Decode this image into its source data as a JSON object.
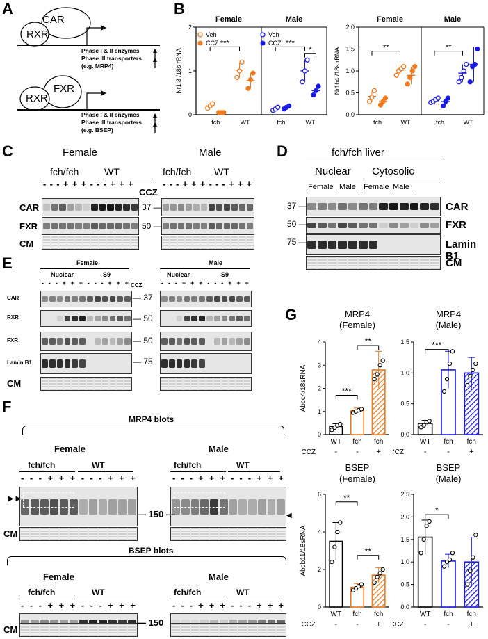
{
  "panels": {
    "A": {
      "label": "A",
      "top": {
        "receptor": "CAR",
        "partner": "RXR",
        "line1": "Phase I & II enzymes",
        "line2": "Phase III transporters",
        "line3": "(e.g. MRP4)"
      },
      "bottom": {
        "receptor": "FXR",
        "partner": "RXR",
        "line1": "Phase I & II enzymes",
        "line2": "Phase III transporters",
        "line3": "(e.g. BSEP)"
      }
    },
    "B": {
      "label": "B"
    },
    "C": {
      "label": "C",
      "female_title": "Female",
      "male_title": "Male",
      "group1": "fch/fch",
      "group2": "WT",
      "ccz_label": "CCZ",
      "lanes": [
        "-",
        "-",
        "-",
        "+",
        "+",
        "+",
        "-",
        "-",
        "-",
        "+",
        "+",
        "+"
      ],
      "row_labels": [
        "CAR",
        "FXR",
        "CM"
      ],
      "markers": [
        "37",
        "50"
      ]
    },
    "D": {
      "label": "D",
      "title": "fch/fch liver",
      "fraction1": "Nuclear",
      "fraction2": "Cytosolic",
      "sexes": [
        "Female",
        "Male",
        "Female",
        "Male"
      ],
      "row_labels": [
        "CAR",
        "FXR",
        "Lamin B1",
        "CM"
      ],
      "markers": [
        "37",
        "50",
        "75"
      ]
    },
    "E": {
      "label": "E",
      "female_title": "Female",
      "male_title": "Male",
      "fraction1": "Nuclear",
      "fraction2": "S9",
      "ccz_label": "CCZ",
      "lanes": [
        "-",
        "-",
        "-",
        "+",
        "+",
        "+",
        "-",
        "-",
        "-",
        "+",
        "+",
        "+"
      ],
      "row_labels": [
        "CAR",
        "RXR",
        "FXR",
        "Lamin B1",
        "CM"
      ],
      "markers": [
        "37",
        "50",
        "50",
        "75"
      ]
    },
    "F": {
      "label": "F",
      "mrp4_title": "MRP4 blots",
      "bsep_title": "BSEP blots",
      "female_title": "Female",
      "male_title": "Male",
      "group1": "fch/fch",
      "group2": "WT",
      "lanes": [
        "-",
        "-",
        "-",
        "+",
        "+",
        "+",
        "-",
        "-",
        "-",
        "+",
        "+",
        "+"
      ],
      "marker": "150",
      "cm": "CM"
    },
    "G": {
      "label": "G"
    }
  },
  "chart_data": [
    {
      "type": "scatter",
      "panel": "B-left",
      "ylabel": "Nr1i3 /18s rRNA",
      "ylim": [
        0,
        2
      ],
      "yticks": [
        "0",
        "1",
        "2"
      ],
      "groups": [
        "Female",
        "Male"
      ],
      "categories": [
        "fch",
        "WT",
        "fch",
        "WT"
      ],
      "legend": {
        "female": [
          "Veh",
          "CCZ"
        ],
        "male": [
          "Veh",
          "CCZ"
        ]
      },
      "series": [
        {
          "name": "Veh",
          "sex": "Female",
          "points": {
            "fch": [
              0.15,
              0.2,
              0.25
            ],
            "WT": [
              0.85,
              1.0,
              1.2
            ]
          },
          "mean": {
            "fch": 0.2,
            "WT": 1.02
          },
          "sd": {
            "fch": 0.05,
            "WT": 0.17
          }
        },
        {
          "name": "CCZ",
          "sex": "Female",
          "points": {
            "fch": [
              0.05,
              0.05,
              0.05
            ],
            "WT": [
              0.6,
              0.8,
              0.95
            ]
          },
          "mean": {
            "fch": 0.05,
            "WT": 0.78
          },
          "sd": {
            "fch": 0.01,
            "WT": 0.17
          }
        },
        {
          "name": "Veh",
          "sex": "Male",
          "points": {
            "fch": [
              0.1,
              0.13,
              0.17
            ],
            "WT": [
              0.75,
              1.0,
              1.25
            ]
          },
          "mean": {
            "fch": 0.14,
            "WT": 1.0
          },
          "sd": {
            "fch": 0.04,
            "WT": 0.25
          }
        },
        {
          "name": "CCZ",
          "sex": "Male",
          "points": {
            "fch": [
              0.13,
              0.17,
              0.2
            ],
            "WT": [
              0.45,
              0.55,
              0.65
            ]
          },
          "mean": {
            "fch": 0.17,
            "WT": 0.55
          },
          "sd": {
            "fch": 0.04,
            "WT": 0.09
          }
        }
      ],
      "annotations": [
        "***",
        "***",
        "*"
      ]
    },
    {
      "type": "scatter",
      "panel": "B-right",
      "ylabel": "Nr1h4 /18s rRNA",
      "ylim": [
        0.0,
        2.0
      ],
      "yticks": [
        "0.0",
        "0.5",
        "1.0",
        "1.5",
        "2.0"
      ],
      "groups": [
        "Female",
        "Male"
      ],
      "categories": [
        "fch",
        "WT",
        "fch",
        "WT"
      ],
      "series": [
        {
          "name": "Veh",
          "sex": "Female",
          "points": {
            "fch": [
              0.3,
              0.4,
              0.55
            ],
            "WT": [
              0.9,
              1.0,
              1.05,
              1.1
            ]
          },
          "mean": {
            "fch": 0.42,
            "WT": 1.02
          },
          "sd": {
            "fch": 0.12,
            "WT": 0.13
          }
        },
        {
          "name": "CCZ",
          "sex": "Female",
          "points": {
            "fch": [
              0.22,
              0.3,
              0.38
            ],
            "WT": [
              0.7,
              0.85,
              1.0,
              1.1
            ]
          },
          "mean": {
            "fch": 0.3,
            "WT": 0.9
          },
          "sd": {
            "fch": 0.08,
            "WT": 0.2
          }
        },
        {
          "name": "Veh",
          "sex": "Male",
          "points": {
            "fch": [
              0.28,
              0.3,
              0.35,
              0.38
            ]
          },
          "mean": {
            "fch": 0.32,
            "WT": 0.95
          },
          "sd": {
            "fch": 0.05,
            "WT": 0.2
          },
          "points_wt": [
            0.75,
            0.85,
            1.0,
            1.15
          ]
        },
        {
          "name": "CCZ",
          "sex": "Male",
          "points": {
            "fch": [
              0.2,
              0.3,
              0.38
            ],
            "WT": [
              0.75,
              1.1,
              1.15,
              1.5
            ]
          },
          "mean": {
            "fch": 0.3,
            "WT": 1.15
          },
          "sd": {
            "fch": 0.08,
            "WT": 0.4
          }
        }
      ],
      "annotations": [
        "**",
        "**"
      ]
    },
    {
      "type": "bar",
      "panel": "G-MRP4-Female",
      "title": "MRP4",
      "subtitle": "(Female)",
      "ylabel": "Abcc4/18sRNA",
      "ylim": [
        0,
        4
      ],
      "yticks": [
        "0",
        "1",
        "2",
        "3",
        "4"
      ],
      "categories": [
        "WT",
        "fch",
        "fch"
      ],
      "ccz": [
        "-",
        "-",
        "+"
      ],
      "values": [
        0.35,
        1.05,
        2.8
      ],
      "sd": [
        0.12,
        0.1,
        0.8
      ],
      "points": [
        [
          0.2,
          0.3,
          0.4,
          0.45
        ],
        [
          0.95,
          1.0,
          1.05,
          1.1
        ],
        [
          2.4,
          2.6,
          3.0,
          3.2
        ]
      ],
      "annotations": [
        "***",
        "**"
      ]
    },
    {
      "type": "bar",
      "panel": "G-MRP4-Male",
      "title": "MRP4",
      "subtitle": "(Male)",
      "ylabel": "",
      "ylim": [
        0.0,
        1.5
      ],
      "yticks": [
        "0.0",
        "0.5",
        "1.0",
        "1.5"
      ],
      "categories": [
        "WT",
        "fch",
        "fch"
      ],
      "ccz": [
        "-",
        "-",
        "+"
      ],
      "values": [
        0.18,
        1.05,
        1.0
      ],
      "sd": [
        0.05,
        0.3,
        0.25
      ],
      "points": [
        [
          0.12,
          0.15,
          0.2,
          0.22
        ],
        [
          0.7,
          0.9,
          1.15,
          1.35
        ],
        [
          0.8,
          0.95,
          1.05,
          1.15
        ]
      ],
      "annotations": [
        "***"
      ]
    },
    {
      "type": "bar",
      "panel": "G-BSEP-Female",
      "title": "BSEP",
      "subtitle": "(Female)",
      "ylabel": "Abcb11/18sRNA",
      "ylim": [
        0,
        6
      ],
      "yticks": [
        "0",
        "2",
        "4",
        "6"
      ],
      "categories": [
        "WT",
        "fch",
        "fch"
      ],
      "ccz": [
        "-",
        "-",
        "+"
      ],
      "values": [
        3.5,
        1.05,
        1.7
      ],
      "sd": [
        1.0,
        0.2,
        0.4
      ],
      "points": [
        [
          2.4,
          3.2,
          4.0,
          4.5
        ],
        [
          0.9,
          1.0,
          1.1,
          1.2
        ],
        [
          1.3,
          1.6,
          1.8,
          2.0
        ]
      ],
      "annotations": [
        "**",
        "**"
      ]
    },
    {
      "type": "bar",
      "panel": "G-BSEP-Male",
      "title": "BSEP",
      "subtitle": "(Male)",
      "ylabel": "",
      "ylim": [
        0.0,
        2.5
      ],
      "yticks": [
        "0.0",
        "0.5",
        "1.0",
        "1.5",
        "2.0",
        "2.5"
      ],
      "categories": [
        "WT",
        "fch",
        "fch"
      ],
      "ccz": [
        "-",
        "-",
        "+"
      ],
      "values": [
        1.55,
        1.02,
        1.0
      ],
      "sd": [
        0.38,
        0.15,
        0.55
      ],
      "points": [
        [
          1.2,
          1.5,
          1.8,
          1.9
        ],
        [
          0.9,
          1.0,
          1.05,
          1.2
        ],
        [
          0.5,
          0.8,
          1.1,
          1.6
        ]
      ],
      "annotations": [
        "*"
      ]
    }
  ],
  "colors": {
    "female": "#F07A1E",
    "male": "#1A1AE6",
    "black": "#000000"
  },
  "ccz_axis_label": "CCZ"
}
